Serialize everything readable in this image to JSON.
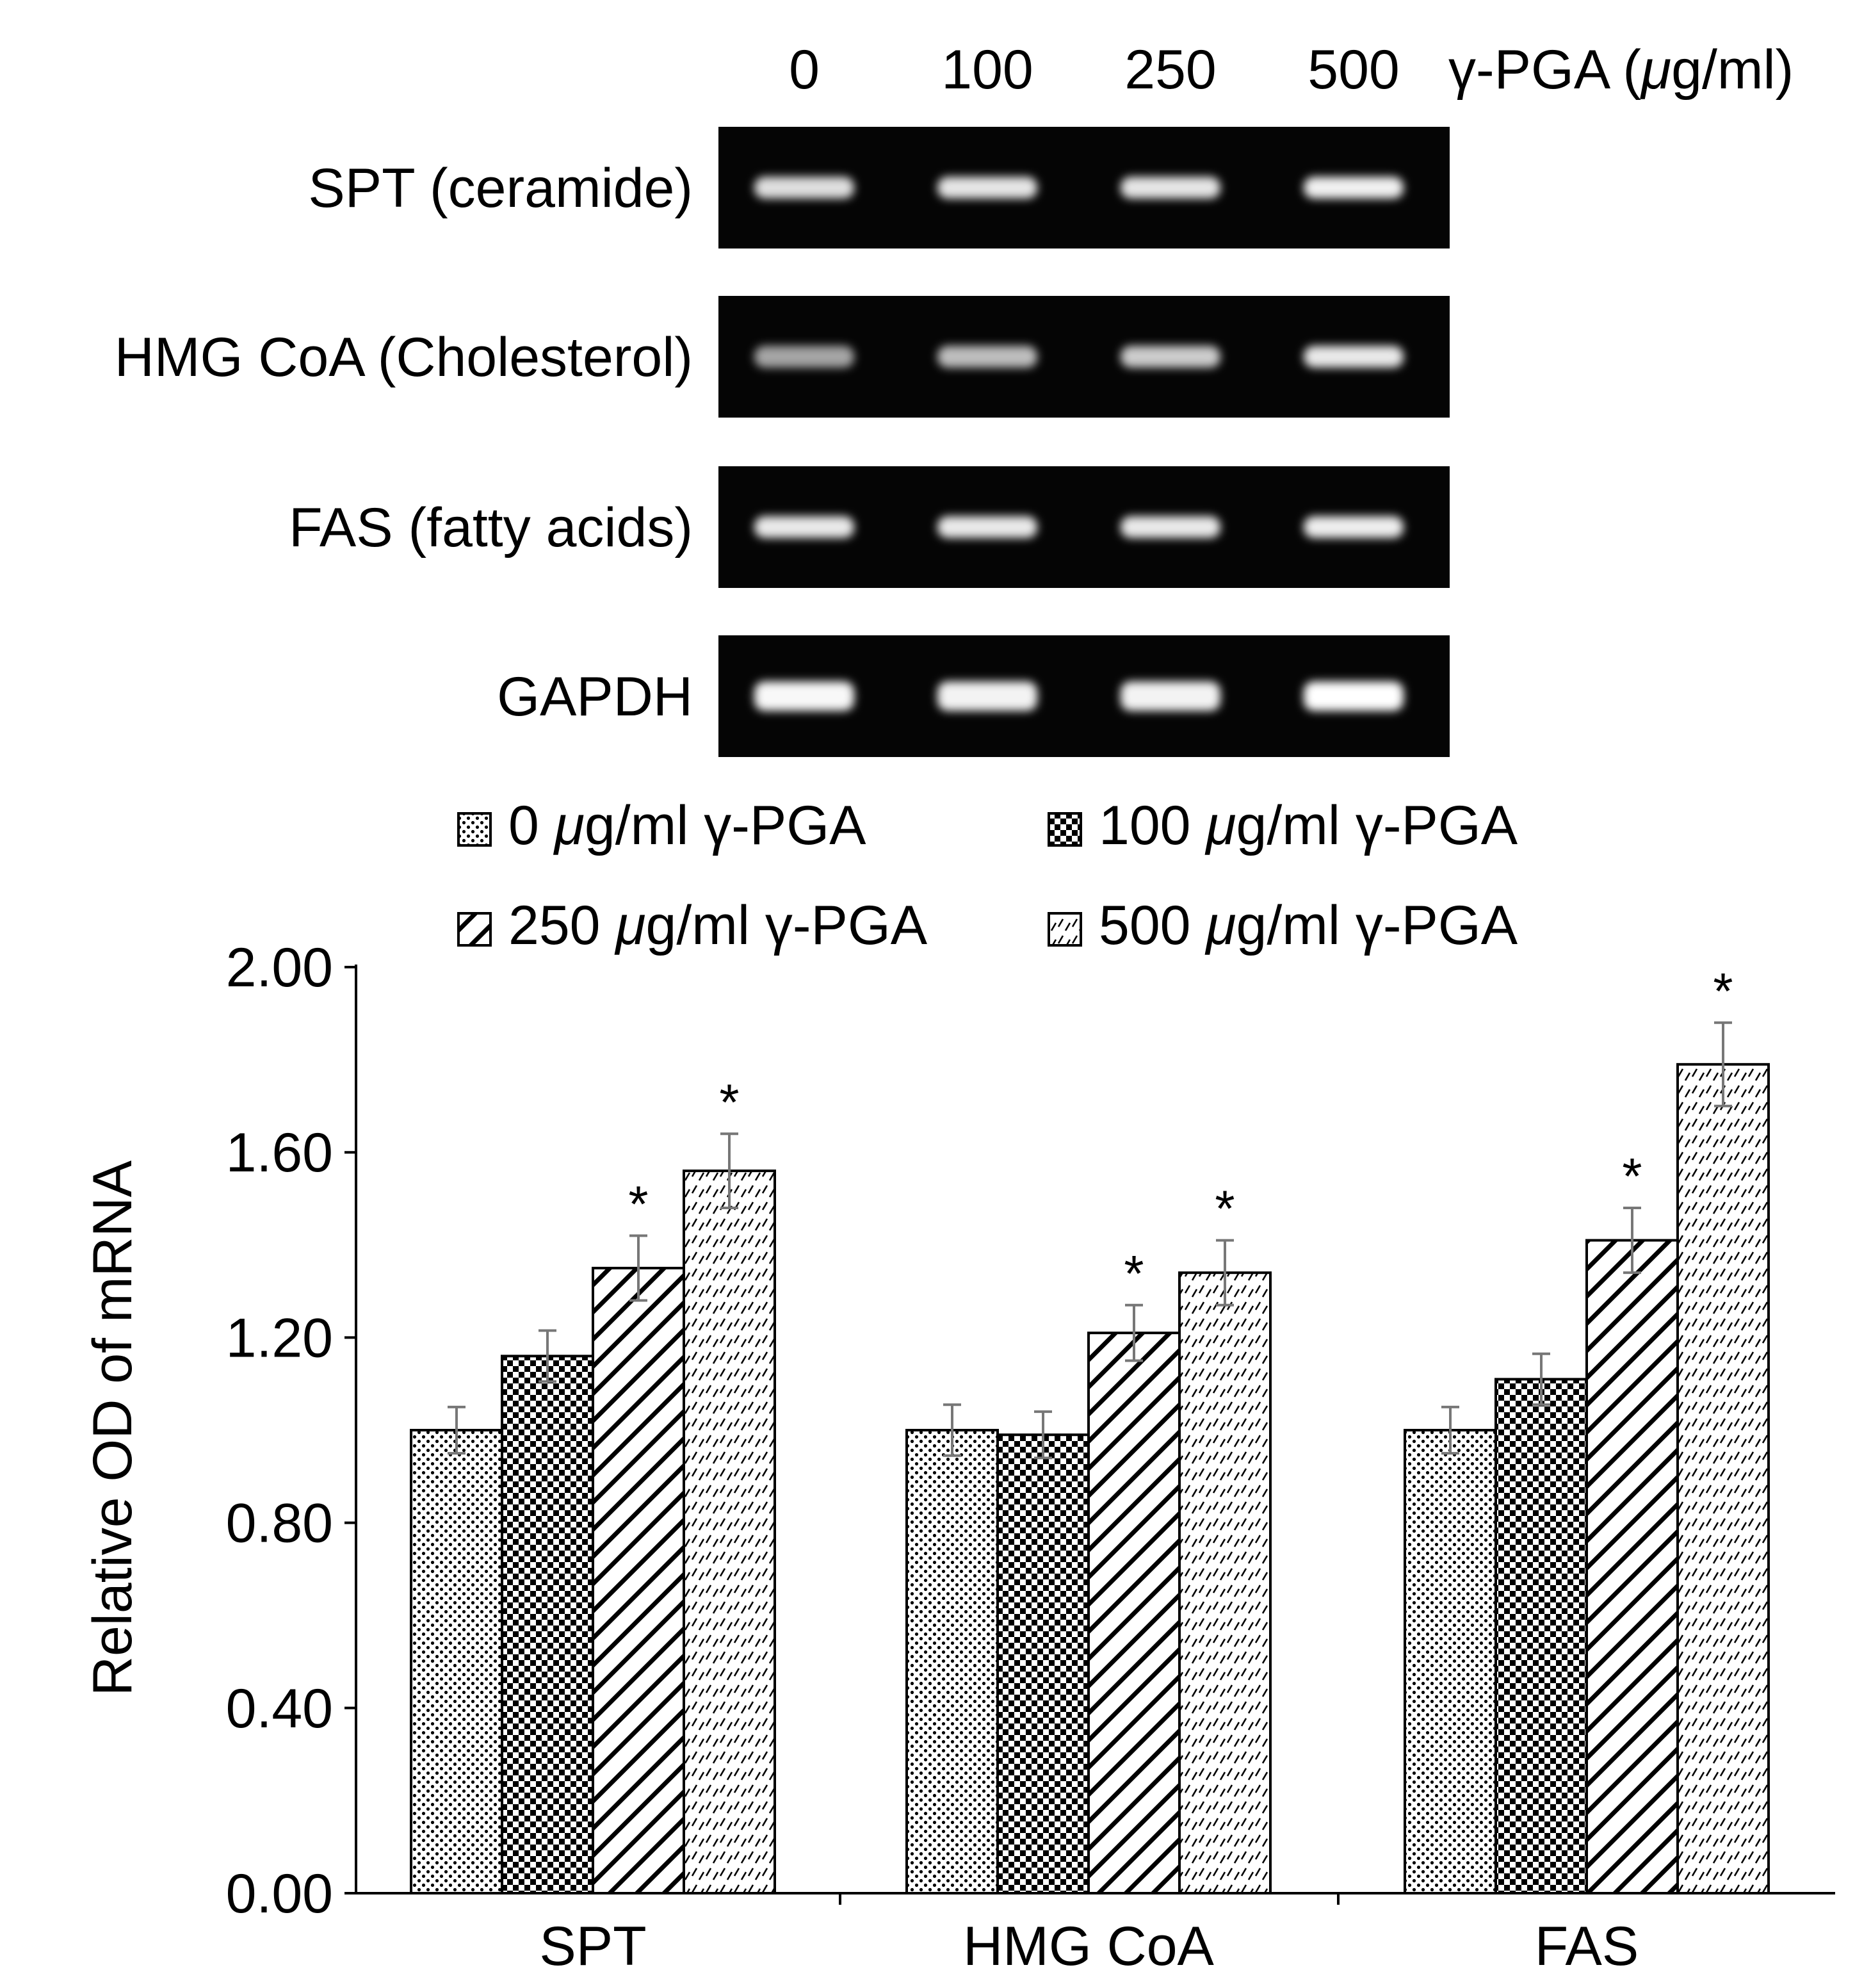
{
  "gel": {
    "dose_header": [
      "0",
      "100",
      "250",
      "500"
    ],
    "dose_label_prefix": "γ-PGA (",
    "dose_label_unit_mu": "μ",
    "dose_label_unit_rest": "g/ml)",
    "rows": [
      {
        "label": "SPT (ceramide)",
        "bands": [
          0.78,
          0.82,
          0.82,
          0.9
        ]
      },
      {
        "label": "HMG CoA (Cholesterol)",
        "bands": [
          0.38,
          0.55,
          0.65,
          0.85
        ]
      },
      {
        "label": "FAS (fatty acids)",
        "bands": [
          0.85,
          0.85,
          0.85,
          0.88
        ]
      },
      {
        "label": "GAPDH",
        "bands": [
          0.95,
          0.92,
          0.92,
          1.0
        ]
      }
    ]
  },
  "chart_data": {
    "type": "bar",
    "categories": [
      "SPT",
      "HMG CoA",
      "FAS"
    ],
    "ylabel": "Relative OD of mRNA",
    "ylim": [
      0,
      2.0
    ],
    "yticks": [
      "0.00",
      "0.40",
      "0.80",
      "1.20",
      "1.60",
      "2.00"
    ],
    "ytick_values": [
      0,
      0.4,
      0.8,
      1.2,
      1.6,
      2.0
    ],
    "legend_placement": "top",
    "significance_marker": "*",
    "series": [
      {
        "name": "0 μg/ml γ-PGA",
        "name_parts": [
          "0 ",
          "μ",
          "g/ml γ-PGA"
        ],
        "pattern": "dots",
        "values": [
          1.0,
          1.0,
          1.0
        ],
        "errors": [
          0.05,
          0.055,
          0.05
        ],
        "significant": [
          false,
          false,
          false
        ]
      },
      {
        "name": "100 μg/ml γ-PGA",
        "name_parts": [
          "100 ",
          "μ",
          "g/ml γ-PGA"
        ],
        "pattern": "checker",
        "values": [
          1.16,
          0.99,
          1.11
        ],
        "errors": [
          0.055,
          0.05,
          0.055
        ],
        "significant": [
          false,
          false,
          false
        ]
      },
      {
        "name": "250 μg/ml γ-PGA",
        "name_parts": [
          "250 ",
          "μ",
          "g/ml γ-PGA"
        ],
        "pattern": "wide-diagonal",
        "values": [
          1.35,
          1.21,
          1.41
        ],
        "errors": [
          0.07,
          0.06,
          0.07
        ],
        "significant": [
          true,
          true,
          true
        ]
      },
      {
        "name": "500 μg/ml γ-PGA",
        "name_parts": [
          "500 ",
          "μ",
          "g/ml γ-PGA"
        ],
        "pattern": "dashed-diagonal",
        "values": [
          1.56,
          1.34,
          1.79
        ],
        "errors": [
          0.08,
          0.07,
          0.09
        ],
        "significant": [
          true,
          true,
          true
        ]
      }
    ]
  }
}
